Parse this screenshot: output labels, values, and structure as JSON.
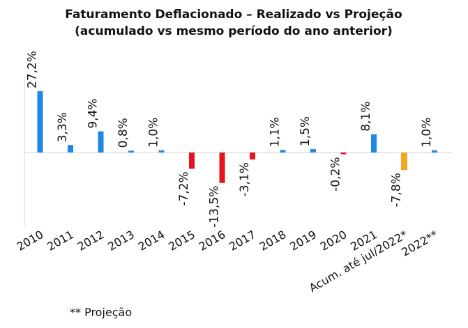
{
  "chart_data": {
    "type": "bar",
    "title": "Faturamento Deflacionado – Realizado vs Projeção",
    "subtitle": "(acumulado vs mesmo período do ano anterior)",
    "categories": [
      "2010",
      "2011",
      "2012",
      "2013",
      "2014",
      "2015",
      "2016",
      "2017",
      "2018",
      "2019",
      "2020",
      "2021",
      "Acum. até jul/2022*",
      "2022**"
    ],
    "values": [
      27.2,
      3.3,
      9.4,
      0.8,
      1.0,
      -7.2,
      -13.5,
      -3.1,
      1.1,
      1.5,
      -0.2,
      8.1,
      -7.8,
      1.0
    ],
    "labels": [
      "27,2%",
      "3,3%",
      "9,4%",
      "0,8%",
      "1,0%",
      "-7,2%",
      "-13,5%",
      "-3,1%",
      "1,1%",
      "1,5%",
      "-0,2%",
      "8,1%",
      "-7,8%",
      "1,0%"
    ],
    "colors": {
      "positive": "#1E88E5",
      "negative": "#E8141C",
      "accumulated": "#F5A623"
    },
    "grid": false,
    "legend": "none",
    "footnote": "** Projeção"
  }
}
